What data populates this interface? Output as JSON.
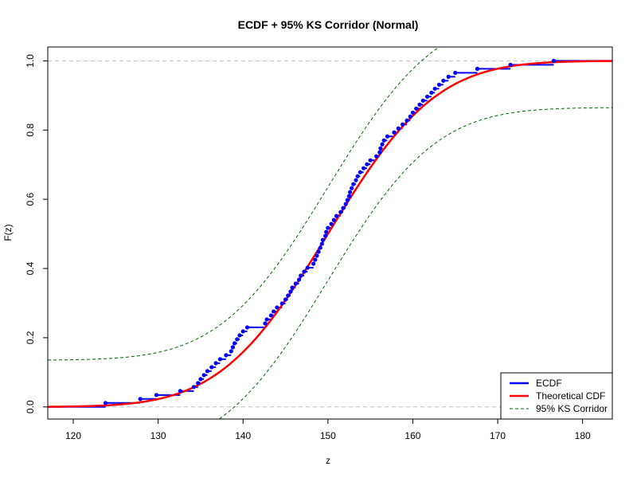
{
  "chart_data": {
    "type": "line",
    "title": "ECDF + 95% KS Corridor (Normal)",
    "xlabel": "z",
    "ylabel": "F(z)",
    "xlim": [
      117,
      183.5
    ],
    "ylim": [
      -0.035,
      1.04
    ],
    "xticks": [
      120,
      130,
      140,
      150,
      160,
      170,
      180
    ],
    "yticks": [
      0.0,
      0.2,
      0.4,
      0.6,
      0.8,
      1.0
    ],
    "reference_lines_y": [
      0,
      1
    ],
    "distribution": {
      "mean": 150,
      "sd": 10
    },
    "ks_band_half_width": 0.135,
    "legend_position": "bottom-right",
    "legend": [
      "ECDF",
      "Theoretical CDF",
      "95% KS Corridor"
    ],
    "colors": {
      "ecdf": "#0000ff",
      "theoretical": "#ff0000",
      "corridor": "#006400",
      "reference": "#bebebe"
    },
    "ecdf_points": [
      123.8,
      127.9,
      129.8,
      132.6,
      134.2,
      134.7,
      135.0,
      135.4,
      135.8,
      136.3,
      136.8,
      137.3,
      138.0,
      138.6,
      138.8,
      139.0,
      139.3,
      139.6,
      140.0,
      140.5,
      142.6,
      142.8,
      143.3,
      143.6,
      144.0,
      144.6,
      145.0,
      145.3,
      145.6,
      145.8,
      146.2,
      146.6,
      146.8,
      147.2,
      147.6,
      148.3,
      148.5,
      148.7,
      148.9,
      149.1,
      149.3,
      149.4,
      149.7,
      149.8,
      150.0,
      150.4,
      150.7,
      151.0,
      151.5,
      151.8,
      152.1,
      152.3,
      152.5,
      152.6,
      152.8,
      153.0,
      153.3,
      153.5,
      153.8,
      154.2,
      154.6,
      155.0,
      155.7,
      156.1,
      156.2,
      156.4,
      156.6,
      157.0,
      157.8,
      158.3,
      158.8,
      159.3,
      159.7,
      160.0,
      160.4,
      160.8,
      161.2,
      161.7,
      162.2,
      162.6,
      163.1,
      163.6,
      164.2,
      165.0,
      167.6,
      171.5,
      176.6
    ]
  }
}
